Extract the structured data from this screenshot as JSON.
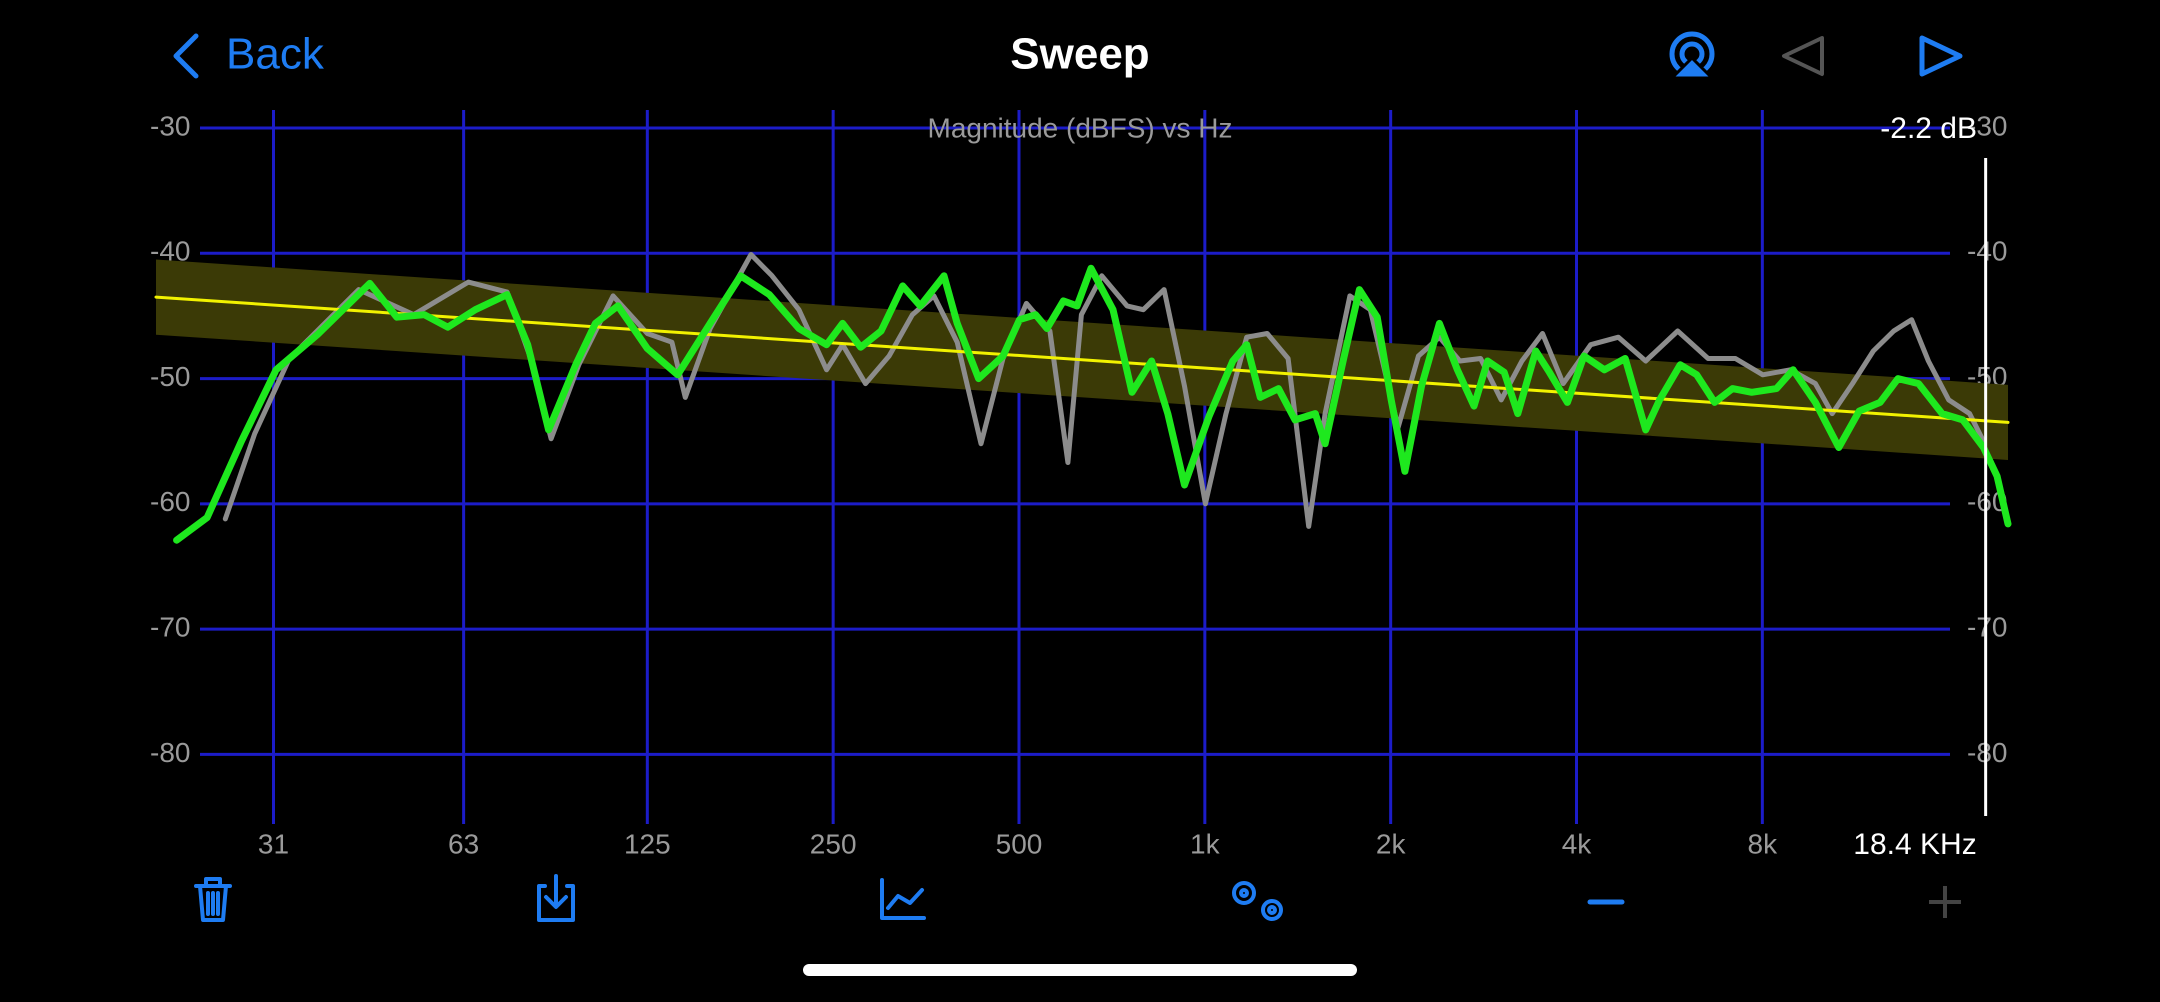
{
  "nav": {
    "back": "Back",
    "title": "Sweep"
  },
  "chart_data": {
    "type": "line",
    "title": "Magnitude (dBFS) vs Hz",
    "xscale": "log",
    "xlim": [
      20,
      20000
    ],
    "ylim": [
      -29,
      -85
    ],
    "xticks": [
      31,
      63,
      125,
      250,
      500,
      {
        "value": 1000,
        "label": "1k"
      },
      {
        "value": 2000,
        "label": "2k"
      },
      {
        "value": 4000,
        "label": "4k"
      },
      {
        "value": 8000,
        "label": "8k"
      }
    ],
    "yticks": [
      -30,
      -40,
      -50,
      -60,
      -70,
      -80
    ],
    "grid": true,
    "grid_color": "#1c1cc8",
    "band": {
      "color": "#3b3a06",
      "x": [
        20,
        20000
      ],
      "upper": [
        -40.5,
        -50.5
      ],
      "lower": [
        -46.5,
        -56.5
      ]
    },
    "series": [
      {
        "color": "#8c8c8c",
        "x": [
          25.9,
          28.9,
          32.9,
          42.6,
          52.3,
          64.1,
          74.1,
          80.9,
          87.3,
          96.8,
          110,
          125,
          137,
          144,
          158,
          184,
          199,
          220,
          244,
          259,
          282,
          308,
          336,
          364,
          397,
          434,
          471,
          514,
          561,
          600,
          631,
          681,
          748,
          795,
          859,
          927,
          1002,
          1082,
          1169,
          1262,
          1364,
          1473,
          1566,
          1718,
          1854,
          2056,
          2218,
          2399,
          2589,
          2797,
          3021,
          3263,
          3524,
          3806,
          4218,
          4676,
          5178,
          5834,
          6534,
          7235,
          8014,
          8883,
          9750,
          10380,
          11200,
          12100,
          13060,
          13960,
          14860,
          16030,
          17330,
          18250
        ],
        "values": [
          -61.2,
          -54.4,
          -48.4,
          -42.9,
          -44.9,
          -42.3,
          -43.1,
          -48.4,
          -54.8,
          -48.9,
          -43.4,
          -46.4,
          -47.1,
          -51.5,
          -46.0,
          -40.1,
          -41.8,
          -44.5,
          -49.3,
          -47.3,
          -50.4,
          -48.2,
          -44.9,
          -43.4,
          -47.1,
          -55.2,
          -48.4,
          -44.0,
          -46.2,
          -56.7,
          -44.9,
          -41.8,
          -44.2,
          -44.5,
          -42.9,
          -50.6,
          -60.0,
          -52.8,
          -46.7,
          -46.4,
          -48.4,
          -61.8,
          -52.8,
          -43.4,
          -44.5,
          -53.9,
          -48.2,
          -46.7,
          -48.6,
          -48.4,
          -51.7,
          -48.6,
          -46.4,
          -50.4,
          -47.3,
          -46.7,
          -48.6,
          -46.2,
          -48.4,
          -48.4,
          -49.7,
          -49.3,
          -50.4,
          -52.8,
          -50.4,
          -47.8,
          -46.2,
          -45.3,
          -48.6,
          -51.7,
          -52.8,
          -55.0
        ]
      },
      {
        "color": "#f2f200",
        "x": [
          20,
          20000
        ],
        "values": [
          -43.5,
          -53.5
        ]
      },
      {
        "color": "#1ee81e",
        "x": [
          21.6,
          24.2,
          27.5,
          31.3,
          36.5,
          44.4,
          49.1,
          54.4,
          59.4,
          65.8,
          74.1,
          80,
          86.5,
          95.7,
          103,
          112,
          125,
          140,
          158,
          177,
          197,
          220,
          244,
          259,
          277,
          299,
          324,
          346,
          378,
          397,
          430,
          471,
          501,
          532,
          555,
          590,
          621,
          654,
          710,
          762,
          820,
          871,
          927,
          1016,
          1110,
          1169,
          1230,
          1316,
          1400,
          1510,
          1566,
          1675,
          1780,
          1902,
          2004,
          2109,
          2244,
          2399,
          2565,
          2729,
          2871,
          3055,
          3214,
          3437,
          3616,
          3866,
          4113,
          4438,
          4796,
          5178,
          5454,
          5888,
          6262,
          6694,
          7157,
          7690,
          8435,
          8971,
          9750,
          10640,
          11480,
          12410,
          13270,
          14330,
          15640,
          16900,
          18250,
          19200,
          20000
        ],
        "values": [
          -62.9,
          -61.1,
          -55.0,
          -49.3,
          -46.5,
          -42.4,
          -45.1,
          -44.9,
          -45.9,
          -44.5,
          -43.3,
          -47.3,
          -54.1,
          -48.9,
          -45.6,
          -44.2,
          -47.6,
          -49.7,
          -45.6,
          -41.8,
          -43.3,
          -46.0,
          -47.3,
          -45.6,
          -47.5,
          -46.2,
          -42.6,
          -44.2,
          -41.8,
          -45.6,
          -50.0,
          -48.2,
          -45.3,
          -44.9,
          -46.0,
          -43.8,
          -44.2,
          -41.2,
          -44.5,
          -51.1,
          -48.6,
          -52.8,
          -58.5,
          -53.0,
          -48.6,
          -47.3,
          -51.5,
          -50.8,
          -53.3,
          -52.8,
          -55.2,
          -48.6,
          -42.9,
          -45.1,
          -51.7,
          -57.4,
          -50.6,
          -45.6,
          -49.3,
          -52.2,
          -48.6,
          -49.5,
          -52.8,
          -47.8,
          -49.5,
          -51.9,
          -48.2,
          -49.3,
          -48.4,
          -54.1,
          -51.7,
          -48.9,
          -49.7,
          -51.9,
          -50.8,
          -51.1,
          -50.8,
          -49.3,
          -51.9,
          -55.5,
          -52.6,
          -51.9,
          -50.0,
          -50.4,
          -52.8,
          -53.3,
          -55.5,
          -57.8,
          -61.6
        ]
      }
    ],
    "cursor": {
      "x": 18400,
      "label": "18.4 KHz",
      "readout": "-2.2 dB"
    }
  }
}
